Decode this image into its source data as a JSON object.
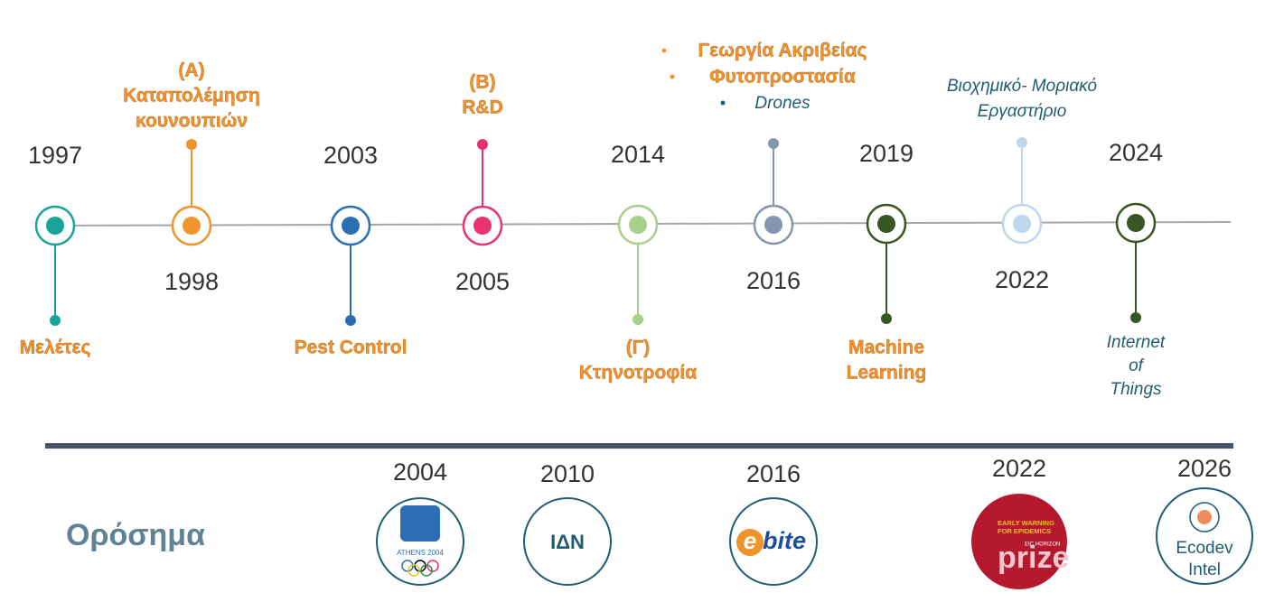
{
  "timeline": {
    "events": [
      {
        "year": "1997",
        "label": [
          "Μελέτες"
        ]
      },
      {
        "year": "1998",
        "label": [
          "(A)",
          "Καταπολέμηση",
          "κουνουπιών"
        ]
      },
      {
        "year": "2003",
        "label": [
          "Pest Control"
        ]
      },
      {
        "year": "2005",
        "label": [
          "(B)",
          "R&D"
        ]
      },
      {
        "year": "2014",
        "label": [
          "(Γ)",
          "Κτηνοτροφία"
        ]
      },
      {
        "year": "2016",
        "label": [
          "Γεωργία Ακριβείας",
          "Φυτοπροστασία",
          "Drones"
        ]
      },
      {
        "year": "2019",
        "label": [
          "Machine",
          "Learning"
        ]
      },
      {
        "year": "2022",
        "label": [
          "Βιοχημικό- Μοριακό",
          "Εργαστήριο"
        ]
      },
      {
        "year": "2024",
        "label": [
          "Internet",
          "of",
          "Things"
        ]
      }
    ]
  },
  "milestones": {
    "title": "Ορόσημα",
    "items": [
      {
        "year": "2004",
        "logo": [
          "ATHENS 2004"
        ]
      },
      {
        "year": "2010",
        "logo": [
          "ΙΔΝ"
        ]
      },
      {
        "year": "2016",
        "logo": [
          "e",
          "bite"
        ]
      },
      {
        "year": "2022",
        "logo": [
          "EARLY WARNING",
          "FOR EPIDEMICS",
          "EIC HORIZON",
          "prize"
        ]
      },
      {
        "year": "2026",
        "logo": [
          "Ecodev",
          "Intel"
        ]
      }
    ]
  }
}
